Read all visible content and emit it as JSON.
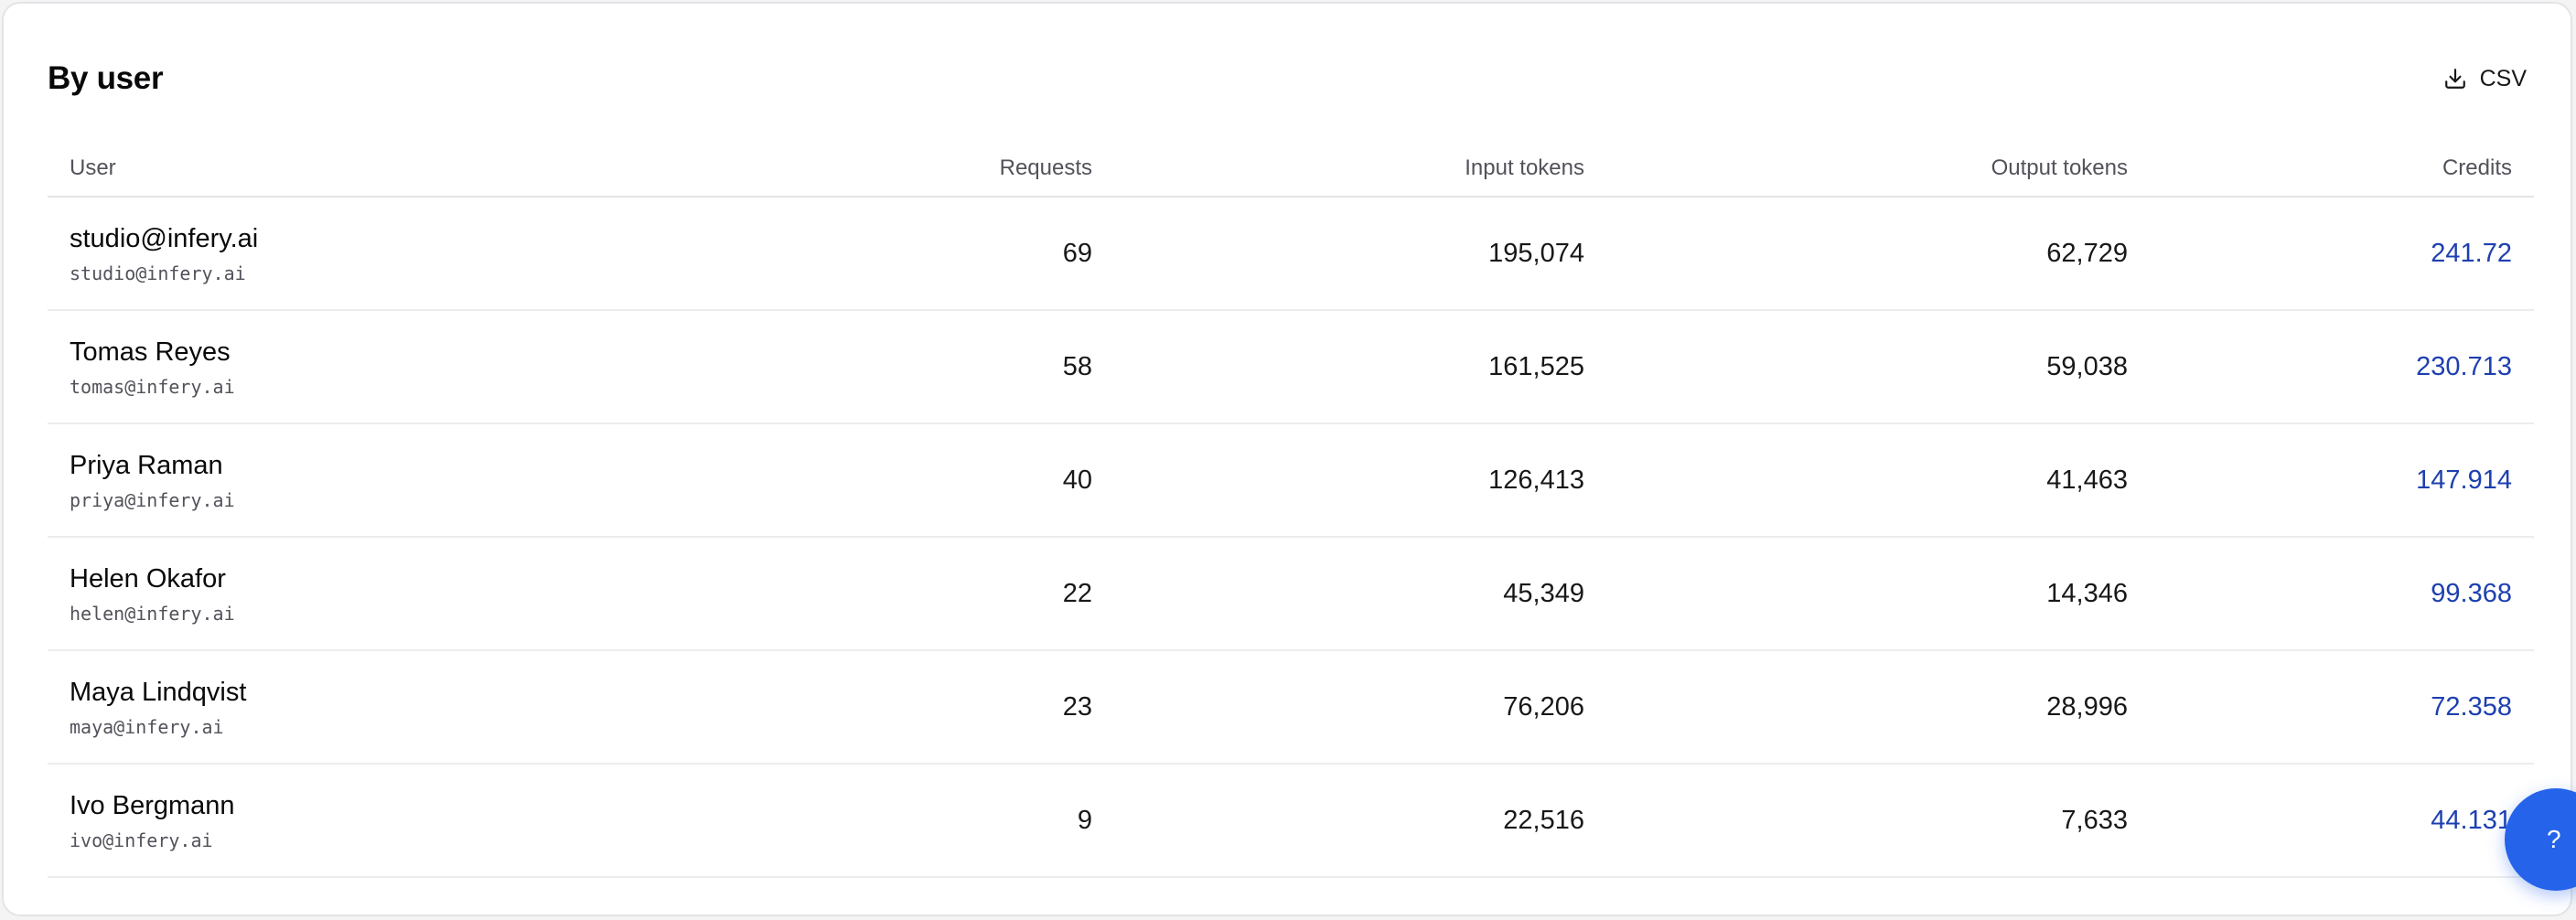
{
  "section": {
    "title": "By user",
    "csv_label": "CSV"
  },
  "table": {
    "headers": {
      "user": "User",
      "requests": "Requests",
      "input_tokens": "Input tokens",
      "output_tokens": "Output tokens",
      "credits": "Credits"
    },
    "rows": [
      {
        "name": "studio@infery.ai",
        "email": "studio@infery.ai",
        "requests": "69",
        "input_tokens": "195,074",
        "output_tokens": "62,729",
        "credits": "241.72"
      },
      {
        "name": "Tomas Reyes",
        "email": "tomas@infery.ai",
        "requests": "58",
        "input_tokens": "161,525",
        "output_tokens": "59,038",
        "credits": "230.713"
      },
      {
        "name": "Priya Raman",
        "email": "priya@infery.ai",
        "requests": "40",
        "input_tokens": "126,413",
        "output_tokens": "41,463",
        "credits": "147.914"
      },
      {
        "name": "Helen Okafor",
        "email": "helen@infery.ai",
        "requests": "22",
        "input_tokens": "45,349",
        "output_tokens": "14,346",
        "credits": "99.368"
      },
      {
        "name": "Maya Lindqvist",
        "email": "maya@infery.ai",
        "requests": "23",
        "input_tokens": "76,206",
        "output_tokens": "28,996",
        "credits": "72.358"
      },
      {
        "name": "Ivo Bergmann",
        "email": "ivo@infery.ai",
        "requests": "9",
        "input_tokens": "22,516",
        "output_tokens": "7,633",
        "credits": "44.131"
      }
    ]
  },
  "help": {
    "label": "?"
  },
  "icons": {
    "csv": "download-icon"
  },
  "colors": {
    "credits_text": "#1e40af",
    "help_button": "#2563eb"
  }
}
